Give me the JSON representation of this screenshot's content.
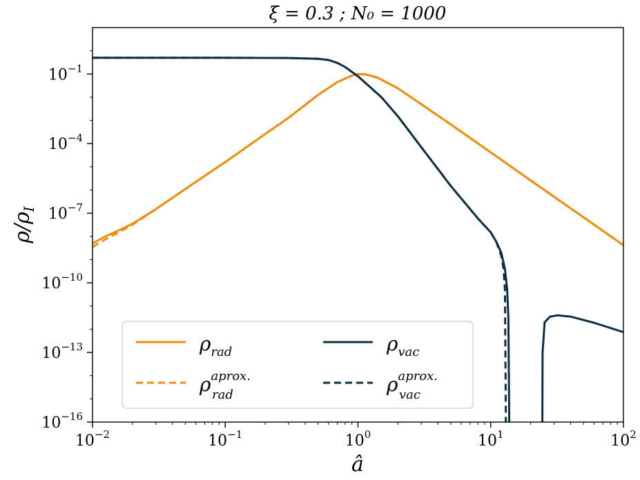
{
  "chart_data": {
    "type": "line",
    "title": "ξ = 0.3 ;  N₀ = 1000",
    "xlabel": "â",
    "ylabel": "ρ/ρ",
    "ylabel_sub": "I",
    "x_scale": "log",
    "y_scale": "log",
    "xlim": [
      0.01,
      100
    ],
    "ylim": [
      1e-16,
      10
    ],
    "x_ticks": [
      {
        "value": 0.01,
        "base": "10",
        "exp": "−2"
      },
      {
        "value": 0.1,
        "base": "10",
        "exp": "−1"
      },
      {
        "value": 1,
        "base": "10",
        "exp": "0"
      },
      {
        "value": 10,
        "base": "10",
        "exp": "1"
      },
      {
        "value": 100,
        "base": "10",
        "exp": "2"
      }
    ],
    "y_ticks": [
      {
        "value": 1e-16,
        "base": "10",
        "exp": "−16"
      },
      {
        "value": 1e-13,
        "base": "10",
        "exp": "−13"
      },
      {
        "value": 1e-10,
        "base": "10",
        "exp": "−10"
      },
      {
        "value": 1e-07,
        "base": "10",
        "exp": "−7"
      },
      {
        "value": 0.0001,
        "base": "10",
        "exp": "−4"
      },
      {
        "value": 0.1,
        "base": "10",
        "exp": "−1"
      }
    ],
    "grid": false,
    "legend_position": "lower-left",
    "series": [
      {
        "name": "ρ_rad",
        "legend_main": "ρ",
        "legend_sub": "rad",
        "legend_sup": "",
        "color": "#F28C0F",
        "dash": "solid",
        "points": [
          [
            0.01,
            5e-09
          ],
          [
            0.0125,
            1e-08
          ],
          [
            0.015,
            1.6e-08
          ],
          [
            0.02,
            3.5e-08
          ],
          [
            0.03,
            1.5e-07
          ],
          [
            0.05,
            1.1e-06
          ],
          [
            0.1,
            1.6e-05
          ],
          [
            0.2,
            0.00026
          ],
          [
            0.3,
            0.0013
          ],
          [
            0.5,
            0.0125
          ],
          [
            0.7,
            0.045
          ],
          [
            0.9,
            0.085
          ],
          [
            1.0,
            0.1
          ],
          [
            1.15,
            0.095
          ],
          [
            1.4,
            0.07
          ],
          [
            2.0,
            0.024
          ],
          [
            3.0,
            0.005
          ],
          [
            5.0,
            0.00067
          ],
          [
            10,
            4.2e-05
          ],
          [
            20,
            2.6e-06
          ],
          [
            50,
            6.7e-08
          ],
          [
            100,
            4.2e-09
          ]
        ]
      },
      {
        "name": "ρ_rad^aprox.",
        "legend_main": "ρ",
        "legend_sub": "rad",
        "legend_sup": "aprox.",
        "color": "#F28C0F",
        "dash": "dashed",
        "points": [
          [
            0.01,
            3.5e-09
          ],
          [
            0.0125,
            7.5e-09
          ],
          [
            0.015,
            1.3e-08
          ],
          [
            0.02,
            3.2e-08
          ],
          [
            0.03,
            1.5e-07
          ],
          [
            0.05,
            1.1e-06
          ],
          [
            0.1,
            1.6e-05
          ],
          [
            0.2,
            0.00026
          ],
          [
            0.3,
            0.0013
          ],
          [
            0.5,
            0.0125
          ],
          [
            0.7,
            0.045
          ],
          [
            0.9,
            0.085
          ],
          [
            1.0,
            0.1
          ],
          [
            1.15,
            0.095
          ],
          [
            1.4,
            0.07
          ],
          [
            2.0,
            0.024
          ],
          [
            3.0,
            0.005
          ],
          [
            5.0,
            0.00067
          ],
          [
            10,
            4.2e-05
          ],
          [
            20,
            2.6e-06
          ],
          [
            50,
            6.7e-08
          ],
          [
            100,
            4.2e-09
          ]
        ]
      },
      {
        "name": "ρ_vac",
        "legend_main": "ρ",
        "legend_sub": "vac",
        "legend_sup": "",
        "color": "#0D2F45",
        "dash": "solid",
        "points": [
          [
            0.01,
            0.5
          ],
          [
            0.1,
            0.5
          ],
          [
            0.3,
            0.49
          ],
          [
            0.5,
            0.45
          ],
          [
            0.6,
            0.4
          ],
          [
            0.7,
            0.3
          ],
          [
            0.8,
            0.2
          ],
          [
            1.0,
            0.08
          ],
          [
            1.5,
            0.01
          ],
          [
            2.0,
            0.0015
          ],
          [
            3.0,
            7e-05
          ],
          [
            5.0,
            1.5e-06
          ],
          [
            8.0,
            6e-08
          ],
          [
            10,
            1.5e-08
          ],
          [
            11,
            6e-09
          ],
          [
            12,
            2e-09
          ],
          [
            12.8,
            4e-10
          ],
          [
            13.3,
            5e-11
          ],
          [
            13.6,
            3e-12
          ],
          [
            13.8,
            1e-16
          ]
        ],
        "points2": [
          [
            24.5,
            1e-16
          ],
          [
            24.6,
            1e-13
          ],
          [
            25.5,
            2e-12
          ],
          [
            28,
            3.5e-12
          ],
          [
            32,
            4e-12
          ],
          [
            40,
            3.5e-12
          ],
          [
            60,
            1.9e-12
          ],
          [
            100,
            7.5e-13
          ]
        ]
      },
      {
        "name": "ρ_vac^aprox.",
        "legend_main": "ρ",
        "legend_sub": "vac",
        "legend_sup": "aprox.",
        "color": "#0D2F45",
        "dash": "dashed",
        "points": [
          [
            0.01,
            0.5
          ],
          [
            0.1,
            0.5
          ],
          [
            0.3,
            0.49
          ],
          [
            0.5,
            0.45
          ],
          [
            0.6,
            0.4
          ],
          [
            0.7,
            0.3
          ],
          [
            0.8,
            0.2
          ],
          [
            1.0,
            0.08
          ],
          [
            1.5,
            0.01
          ],
          [
            2.0,
            0.0015
          ],
          [
            3.0,
            7e-05
          ],
          [
            5.0,
            1.5e-06
          ],
          [
            8.0,
            6e-08
          ],
          [
            10,
            1.5e-08
          ],
          [
            11,
            6e-09
          ],
          [
            12,
            1.5e-09
          ],
          [
            12.5,
            4e-10
          ],
          [
            12.8,
            5e-11
          ],
          [
            13.0,
            1e-16
          ]
        ]
      }
    ]
  }
}
